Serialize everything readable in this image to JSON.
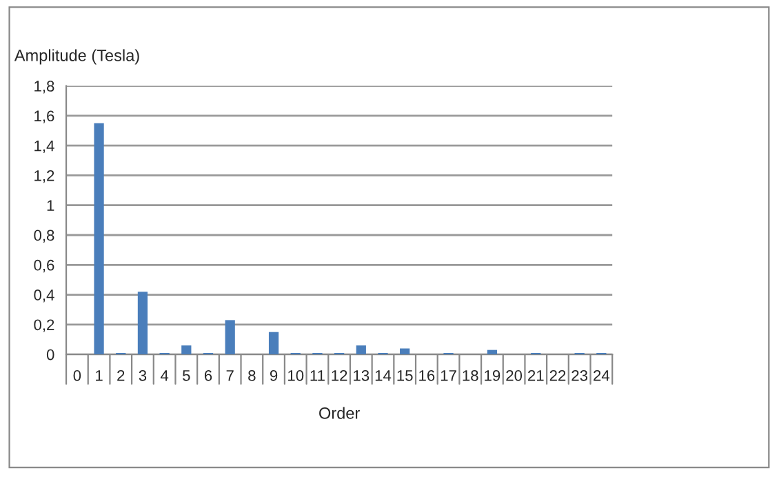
{
  "chart_data": {
    "type": "bar",
    "ylabel": "Amplitude (Tesla)",
    "xlabel": "Order",
    "categories": [
      "0",
      "1",
      "2",
      "3",
      "4",
      "5",
      "6",
      "7",
      "8",
      "9",
      "10",
      "11",
      "12",
      "13",
      "14",
      "15",
      "16",
      "17",
      "18",
      "19",
      "20",
      "21",
      "22",
      "23",
      "24"
    ],
    "values": [
      null,
      1.55,
      0.01,
      0.42,
      0.01,
      0.06,
      0.01,
      0.23,
      null,
      0.15,
      0.01,
      0.01,
      0.01,
      0.06,
      0.01,
      0.04,
      null,
      0.01,
      null,
      0.03,
      null,
      0.01,
      null,
      0.01,
      0.01
    ],
    "color": "#4a7ebb",
    "ylim": [
      0,
      1.8
    ],
    "yticks": [
      {
        "value": 0,
        "label": "0"
      },
      {
        "value": 0.2,
        "label": "0,2"
      },
      {
        "value": 0.4,
        "label": "0,4"
      },
      {
        "value": 0.6,
        "label": "0,6"
      },
      {
        "value": 0.8,
        "label": "0,8"
      },
      {
        "value": 1,
        "label": "1"
      },
      {
        "value": 1.2,
        "label": "1,2"
      },
      {
        "value": 1.4,
        "label": "1,4"
      },
      {
        "value": 1.6,
        "label": "1,6"
      },
      {
        "value": 1.8,
        "label": "1,8"
      }
    ],
    "grid": "y"
  }
}
